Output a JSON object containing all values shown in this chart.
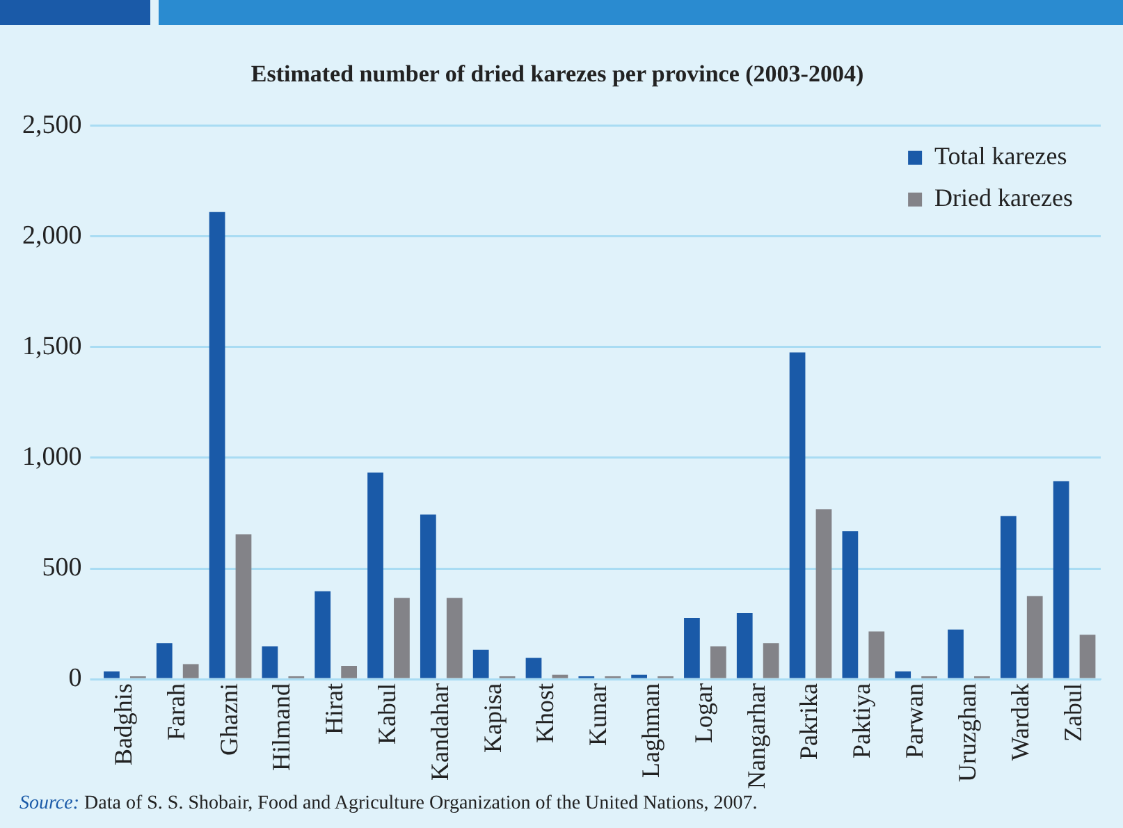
{
  "chart_data": {
    "type": "bar",
    "title": "Estimated number of dried karezes per province (2003-2004)",
    "categories": [
      "Badghis",
      "Farah",
      "Ghazni",
      "Hilmand",
      "Hirat",
      "Kabul",
      "Kandahar",
      "Kapisa",
      "Khost",
      "Kunar",
      "Laghman",
      "Logar",
      "Nangarhar",
      "Pakrika",
      "Paktiya",
      "Parwan",
      "Uruzghan",
      "Wardak",
      "Zabul"
    ],
    "series": [
      {
        "name": "Total karezes",
        "color": "#1a5aa8",
        "values": [
          35,
          163,
          2110,
          148,
          397,
          933,
          744,
          133,
          96,
          13,
          20,
          277,
          299,
          1476,
          669,
          35,
          224,
          737,
          895
        ]
      },
      {
        "name": "Dried karezes",
        "color": "#838388",
        "values": [
          13,
          68,
          654,
          13,
          60,
          367,
          367,
          13,
          20,
          13,
          13,
          148,
          163,
          767,
          216,
          13,
          13,
          375,
          201
        ]
      }
    ],
    "ylim": [
      0,
      2500
    ],
    "yticks": [
      0,
      500,
      {
        "value": 1000,
        "label": "1,000"
      },
      {
        "value": 1500,
        "label": "1,500"
      },
      {
        "value": 2000,
        "label": "2,000"
      },
      {
        "value": 2500,
        "label": "2,500"
      }
    ],
    "grid": "y",
    "legend": "top right",
    "annotations": [
      "Source: Data of S. S. Shobair, Food and Agriculture Organization of the United Nations, 2007."
    ]
  }
}
